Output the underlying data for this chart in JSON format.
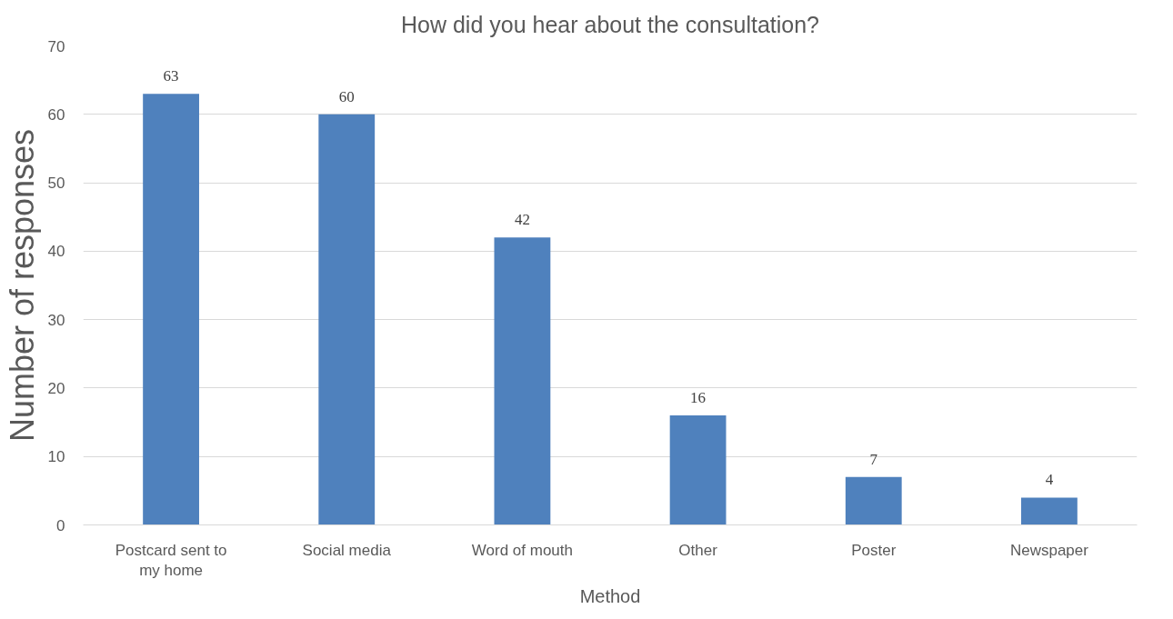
{
  "chart_data": {
    "type": "bar",
    "title": "How did you hear about the consultation?",
    "xlabel": "Method",
    "ylabel": "Number of responses",
    "categories": [
      "Postcard sent to my home",
      "Social media",
      "Word of mouth",
      "Other",
      "Poster",
      "Newspaper"
    ],
    "values": [
      63,
      60,
      42,
      16,
      7,
      4
    ],
    "color": "#4f81bd",
    "ylim": [
      0,
      70
    ],
    "yticks": [
      0,
      10,
      20,
      30,
      40,
      50,
      60,
      70
    ],
    "grid": "y",
    "data_labels": true
  }
}
